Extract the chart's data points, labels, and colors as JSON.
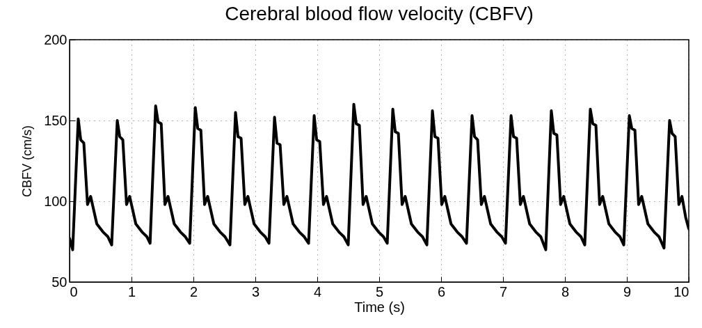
{
  "chart_data": {
    "type": "line",
    "title": "Cerebral blood flow velocity (CBFV)",
    "xlabel": "Time (s)",
    "ylabel": "CBFV (cm/s)",
    "xlim": [
      0,
      10
    ],
    "ylim": [
      50,
      200
    ],
    "xticks": [
      0,
      1,
      2,
      3,
      4,
      5,
      6,
      7,
      8,
      9,
      10
    ],
    "yticks": [
      50,
      100,
      150,
      200
    ],
    "grid": true,
    "line_style": "solid",
    "marker": "none",
    "series": [
      {
        "color": "#000000",
        "x": [
          0,
          0.05,
          0.14,
          0.18,
          0.23,
          0.29,
          0.34,
          0.44,
          0.54,
          0.62,
          0.68,
          0.77,
          0.81,
          0.86,
          0.92,
          0.97,
          1.07,
          1.17,
          1.25,
          1.3,
          1.39,
          1.43,
          1.48,
          1.54,
          1.59,
          1.69,
          1.79,
          1.87,
          1.94,
          2.03,
          2.07,
          2.12,
          2.18,
          2.23,
          2.33,
          2.43,
          2.51,
          2.59,
          2.68,
          2.72,
          2.77,
          2.83,
          2.88,
          2.98,
          3.08,
          3.16,
          3.22,
          3.31,
          3.35,
          3.4,
          3.46,
          3.51,
          3.61,
          3.71,
          3.79,
          3.86,
          3.95,
          3.99,
          4.04,
          4.1,
          4.15,
          4.25,
          4.35,
          4.43,
          4.5,
          4.59,
          4.63,
          4.68,
          4.74,
          4.79,
          4.89,
          4.99,
          5.07,
          5.13,
          5.22,
          5.26,
          5.31,
          5.37,
          5.42,
          5.52,
          5.62,
          5.7,
          5.77,
          5.86,
          5.9,
          5.95,
          6.01,
          6.06,
          6.16,
          6.26,
          6.34,
          6.41,
          6.5,
          6.54,
          6.59,
          6.65,
          6.7,
          6.8,
          6.9,
          6.98,
          7.04,
          7.13,
          7.17,
          7.22,
          7.28,
          7.33,
          7.43,
          7.53,
          7.61,
          7.69,
          7.78,
          7.82,
          7.87,
          7.93,
          7.98,
          8.08,
          8.18,
          8.26,
          8.32,
          8.41,
          8.45,
          8.5,
          8.56,
          8.61,
          8.71,
          8.81,
          8.89,
          8.95,
          9.04,
          9.08,
          9.13,
          9.19,
          9.24,
          9.34,
          9.44,
          9.52,
          9.6,
          9.69,
          9.73,
          9.78,
          9.84,
          9.89,
          9.95,
          10
        ],
        "values": [
          77,
          70,
          151,
          138,
          136,
          98,
          103,
          86,
          81,
          78,
          73,
          150,
          140,
          138,
          98,
          103,
          86,
          81,
          78,
          74,
          159,
          149,
          148,
          98,
          103,
          86,
          81,
          78,
          74,
          158,
          145,
          144,
          98,
          103,
          86,
          81,
          78,
          73,
          155,
          140,
          139,
          98,
          103,
          86,
          81,
          78,
          74,
          152,
          136,
          135,
          98,
          103,
          86,
          81,
          78,
          74,
          153,
          138,
          137,
          98,
          103,
          86,
          81,
          78,
          73,
          160,
          148,
          147,
          98,
          103,
          86,
          81,
          78,
          74,
          157,
          143,
          142,
          98,
          103,
          86,
          81,
          78,
          73,
          156,
          140,
          139,
          98,
          103,
          86,
          81,
          78,
          74,
          153,
          140,
          138,
          98,
          103,
          86,
          81,
          78,
          74,
          153,
          140,
          139,
          98,
          103,
          86,
          81,
          78,
          70,
          156,
          142,
          141,
          98,
          103,
          86,
          81,
          78,
          73,
          157,
          148,
          147,
          98,
          103,
          86,
          81,
          78,
          73,
          153,
          145,
          144,
          98,
          103,
          86,
          81,
          78,
          71,
          150,
          142,
          140,
          98,
          103,
          90,
          83
        ]
      }
    ]
  }
}
